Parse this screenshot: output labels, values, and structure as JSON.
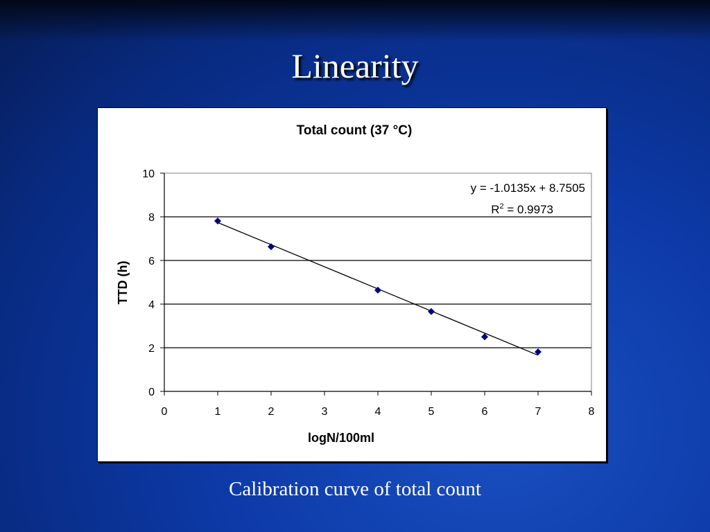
{
  "slide": {
    "title": "Linearity",
    "caption": "Calibration curve of total count"
  },
  "colors": {
    "marker": "#000080",
    "background": "#0d3aa8"
  },
  "chart_data": {
    "type": "scatter",
    "title": "Total count (37 °C)",
    "xlabel": "logN/100ml",
    "ylabel": "TTD (h)",
    "xlim": [
      0,
      8
    ],
    "ylim": [
      0,
      10
    ],
    "xticks": [
      "0",
      "1",
      "2",
      "3",
      "4",
      "5",
      "6",
      "7",
      "8"
    ],
    "yticks": [
      "0",
      "2",
      "4",
      "6",
      "8",
      "10"
    ],
    "grid": "horizontal",
    "x": [
      1,
      2,
      4,
      5,
      6,
      7
    ],
    "y": [
      7.81,
      6.63,
      4.64,
      3.66,
      2.5,
      1.81
    ],
    "trendline": {
      "slope": -1.0135,
      "intercept": 8.7505,
      "x_range": [
        1,
        7
      ]
    },
    "annotations": {
      "equation": "y = -1.0135x + 8.7505",
      "r2_label": "R",
      "r2_sup": "2",
      "r2_value": " = 0.9973"
    }
  }
}
